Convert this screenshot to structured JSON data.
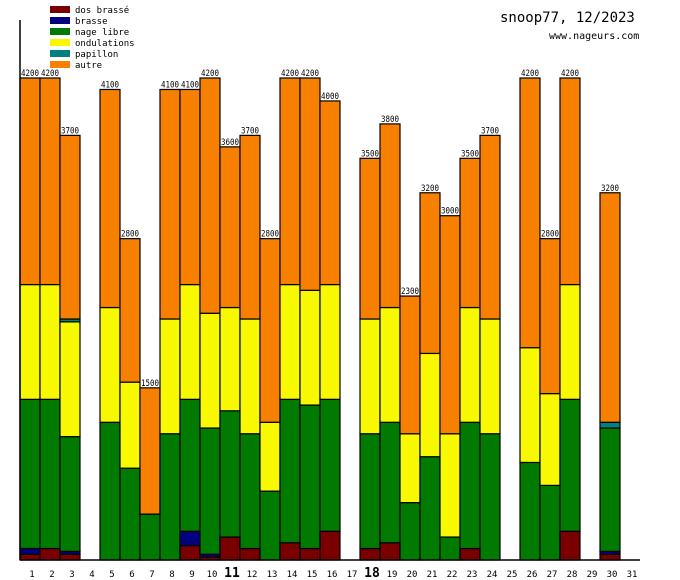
{
  "header": {
    "title": "snoop77, 12/2023",
    "site": "www.nageurs.com"
  },
  "chart_data": {
    "type": "bar",
    "stacked": true,
    "title": "snoop77, 12/2023",
    "ylim": [
      0,
      4700
    ],
    "grid": false,
    "legend_position": "top-left",
    "categories": [
      "1",
      "2",
      "3",
      "4",
      "5",
      "6",
      "7",
      "8",
      "9",
      "10",
      "11",
      "12",
      "13",
      "14",
      "15",
      "16",
      "17",
      "18",
      "19",
      "20",
      "21",
      "22",
      "23",
      "24",
      "25",
      "26",
      "27",
      "28",
      "29",
      "30",
      "31"
    ],
    "bold_categories": [
      "11",
      "18"
    ],
    "totals": [
      4200,
      4200,
      3700,
      0,
      4100,
      2800,
      1500,
      4100,
      4100,
      4200,
      3600,
      3700,
      2800,
      4200,
      4200,
      4000,
      0,
      3500,
      3800,
      2300,
      3200,
      3000,
      3500,
      3700,
      0,
      4200,
      2800,
      4200,
      0,
      3200,
      0
    ],
    "series": [
      {
        "name": "dos brassé",
        "color": "#7a0000",
        "values": [
          50,
          100,
          50,
          0,
          0,
          0,
          0,
          0,
          125,
          25,
          200,
          100,
          0,
          150,
          100,
          250,
          0,
          100,
          150,
          0,
          0,
          0,
          100,
          0,
          0,
          0,
          0,
          250,
          0,
          50,
          0
        ]
      },
      {
        "name": "brasse",
        "color": "#000080",
        "values": [
          50,
          0,
          25,
          0,
          0,
          0,
          0,
          0,
          125,
          25,
          0,
          0,
          0,
          0,
          0,
          0,
          0,
          0,
          0,
          0,
          0,
          0,
          0,
          0,
          0,
          0,
          0,
          0,
          0,
          25,
          0
        ]
      },
      {
        "name": "nage libre",
        "color": "#007a00",
        "values": [
          1300,
          1300,
          1000,
          0,
          1200,
          800,
          400,
          1100,
          1150,
          1100,
          1100,
          1000,
          600,
          1250,
          1250,
          1150,
          0,
          1000,
          1050,
          500,
          900,
          200,
          1100,
          1100,
          0,
          850,
          650,
          1150,
          0,
          1075,
          0
        ]
      },
      {
        "name": "ondulations",
        "color": "#f8f800",
        "values": [
          1000,
          1000,
          1000,
          0,
          1000,
          750,
          0,
          1000,
          1000,
          1000,
          900,
          1000,
          600,
          1000,
          1000,
          1000,
          0,
          1000,
          1000,
          600,
          900,
          900,
          1000,
          1000,
          0,
          1000,
          800,
          1000,
          0,
          0,
          0
        ]
      },
      {
        "name": "papillon",
        "color": "#008080",
        "values": [
          0,
          0,
          25,
          0,
          0,
          0,
          0,
          0,
          0,
          0,
          0,
          0,
          0,
          0,
          0,
          0,
          0,
          0,
          0,
          0,
          0,
          0,
          0,
          0,
          0,
          0,
          0,
          0,
          0,
          50,
          0
        ]
      },
      {
        "name": "autre",
        "color": "#f88000",
        "values": [
          1800,
          1800,
          1600,
          0,
          1900,
          1250,
          1100,
          2000,
          1700,
          2050,
          1400,
          1600,
          1600,
          1800,
          1850,
          1600,
          0,
          1400,
          1600,
          1200,
          1400,
          1900,
          1300,
          1600,
          0,
          2350,
          1350,
          1800,
          0,
          2000,
          0
        ]
      }
    ]
  }
}
